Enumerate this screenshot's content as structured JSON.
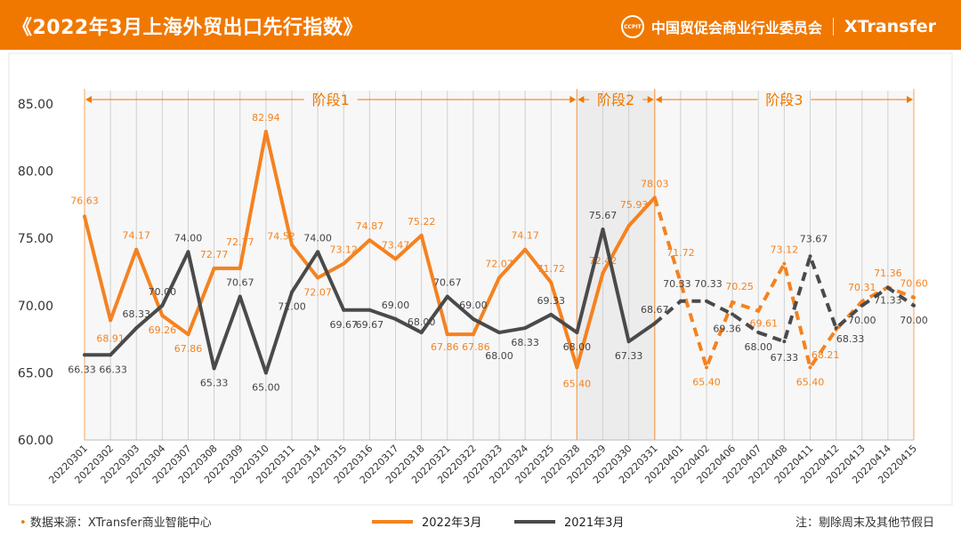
{
  "header": {
    "title": "《2022年3月上海外贸出口先行指数》",
    "logo_text": "CCPIT",
    "org": "中国贸促会商业行业委员会",
    "brand": "XTransfer"
  },
  "footer": {
    "source": "数据来源：XTransfer商业智能中心",
    "note": "注：剔除周末及其他节假日"
  },
  "colors": {
    "accent": "#f07800",
    "series_2022": "#f58220",
    "series_2021": "#4a4a4a",
    "plot_bg": "#f7f7f7",
    "phase2_bg": "#ececec"
  },
  "chart_data": {
    "type": "line",
    "ylim": [
      60,
      85
    ],
    "yticks": [
      "60.00",
      "65.00",
      "70.00",
      "75.00",
      "80.00",
      "85.00"
    ],
    "grid": "vertical",
    "legend": "bottom",
    "categories": [
      "20220301",
      "20220302",
      "20220303",
      "20220304",
      "20220307",
      "20220308",
      "20220309",
      "20220310",
      "20220311",
      "20220314",
      "20220315",
      "20220316",
      "20220317",
      "20220318",
      "20220321",
      "20220322",
      "20220323",
      "20220324",
      "20220325",
      "20220328",
      "20220329",
      "20220330",
      "20220331",
      "20220401",
      "20220402",
      "20220406",
      "20220407",
      "20220408",
      "20220411",
      "20220412",
      "20220413",
      "20220414",
      "20220415"
    ],
    "phases": [
      {
        "label": "阶段1",
        "from": "20220301",
        "to": "20220328"
      },
      {
        "label": "阶段2",
        "from": "20220328",
        "to": "20220331"
      },
      {
        "label": "阶段3",
        "from": "20220331",
        "to": "20220415"
      }
    ],
    "dashed_from": "20220331",
    "series": [
      {
        "name": "2022年3月",
        "color": "#f58220",
        "values": [
          76.63,
          68.91,
          74.17,
          69.26,
          67.86,
          72.77,
          72.77,
          82.94,
          74.52,
          72.07,
          73.12,
          74.87,
          73.47,
          75.22,
          67.86,
          67.86,
          72.07,
          74.17,
          71.72,
          65.4,
          72.42,
          75.93,
          78.03,
          71.72,
          65.4,
          70.25,
          69.61,
          73.12,
          65.4,
          68.21,
          70.31,
          71.36,
          70.6
        ]
      },
      {
        "name": "2021年3月",
        "color": "#4a4a4a",
        "values": [
          66.33,
          66.33,
          68.33,
          70.0,
          74.0,
          65.33,
          70.67,
          65.0,
          71.0,
          74.0,
          69.67,
          69.67,
          69.0,
          68.0,
          70.67,
          69.0,
          68.0,
          68.33,
          69.33,
          68.0,
          75.67,
          67.33,
          68.67,
          70.33,
          70.33,
          69.36,
          68.0,
          67.33,
          73.67,
          68.33,
          70.0,
          71.33,
          70.0
        ]
      }
    ]
  }
}
